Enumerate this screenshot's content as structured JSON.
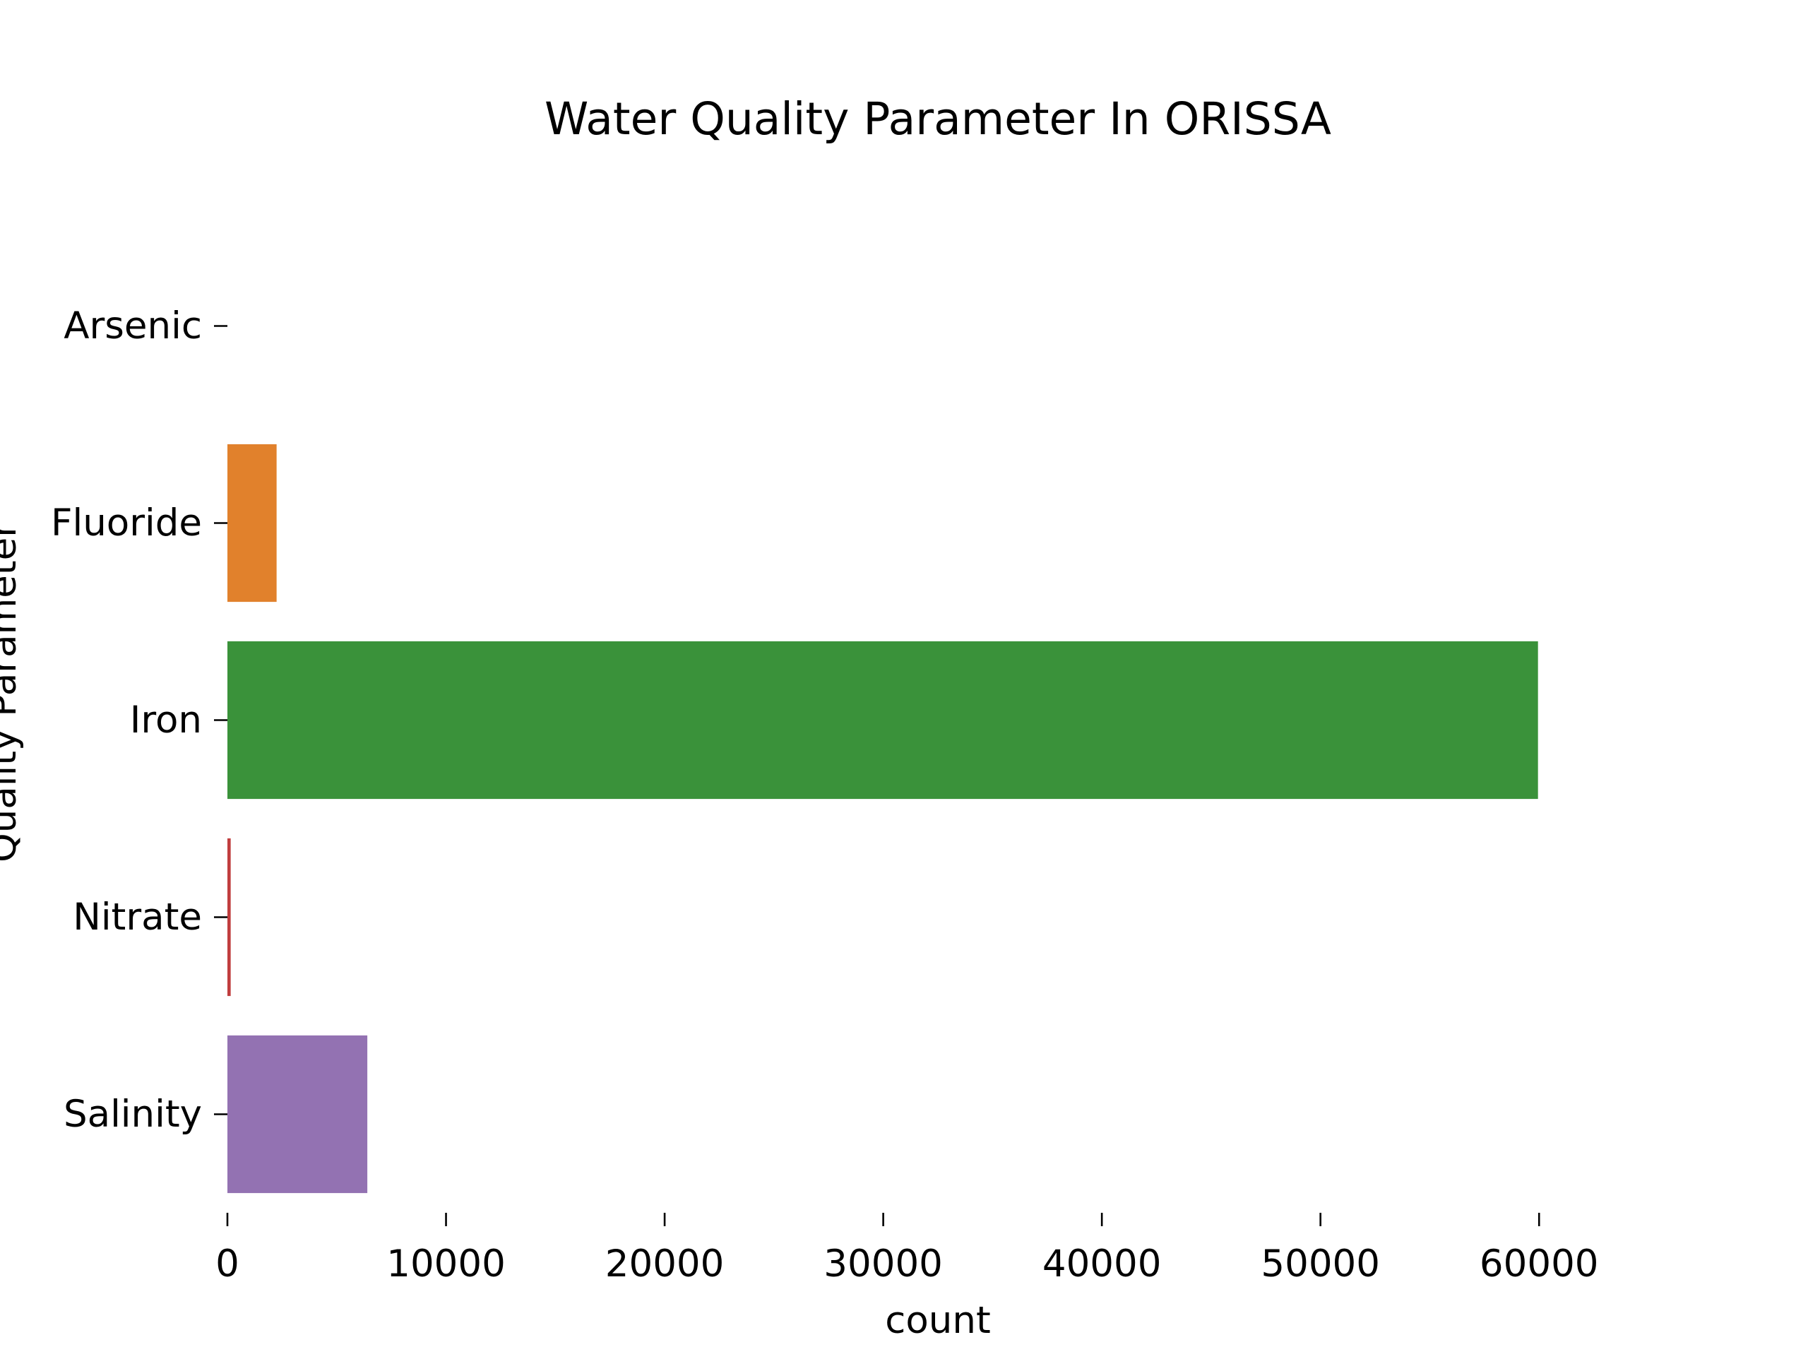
{
  "chart_data": {
    "type": "bar",
    "orientation": "horizontal",
    "title": "Water Quality Parameter In ORISSA",
    "xlabel": "count",
    "ylabel": "Quality Parameter",
    "categories": [
      "Arsenic",
      "Fluoride",
      "Iron",
      "Nitrate",
      "Salinity"
    ],
    "values": [
      0,
      2250,
      59950,
      150,
      6400
    ],
    "colors": [
      "#3a75b0",
      "#e1812c",
      "#3a923a",
      "#c03d3e",
      "#9372b2"
    ],
    "xlim": [
      0,
      65000
    ],
    "xticks": [
      0,
      10000,
      20000,
      30000,
      40000,
      50000,
      60000
    ],
    "xtick_labels": [
      "0",
      "10000",
      "20000",
      "30000",
      "40000",
      "50000",
      "60000"
    ],
    "grid": false,
    "legend": "none"
  }
}
